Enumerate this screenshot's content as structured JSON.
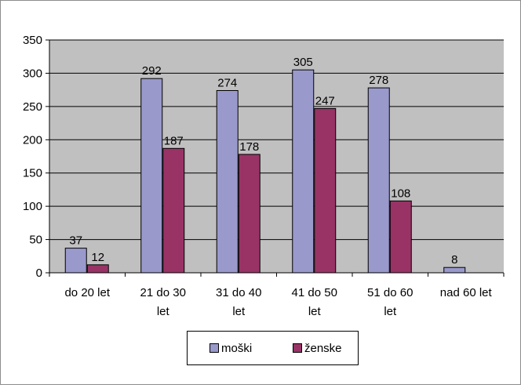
{
  "chart_data": {
    "type": "bar",
    "categories": [
      "do 20 let",
      "21 do 30 let",
      "31 do 40 let",
      "41 do 50 let",
      "51 do 60 let",
      "nad 60 let"
    ],
    "category_lines": [
      [
        "do 20 let"
      ],
      [
        "21 do 30",
        "let"
      ],
      [
        "31 do 40",
        "let"
      ],
      [
        "41 do 50",
        "let"
      ],
      [
        "51 do 60",
        "let"
      ],
      [
        "nad 60 let"
      ]
    ],
    "series": [
      {
        "name": "moški",
        "values": [
          37,
          292,
          274,
          305,
          278,
          8
        ],
        "color": "#9999cc"
      },
      {
        "name": "ženske",
        "values": [
          12,
          187,
          178,
          247,
          108,
          null
        ],
        "color": "#993366"
      }
    ],
    "ylim": [
      0,
      350
    ],
    "yticks": [
      0,
      50,
      100,
      150,
      200,
      250,
      300,
      350
    ],
    "grid": true,
    "plot_background": "#c0c0c0",
    "legend_position": "bottom",
    "title": "",
    "xlabel": "",
    "ylabel": ""
  }
}
